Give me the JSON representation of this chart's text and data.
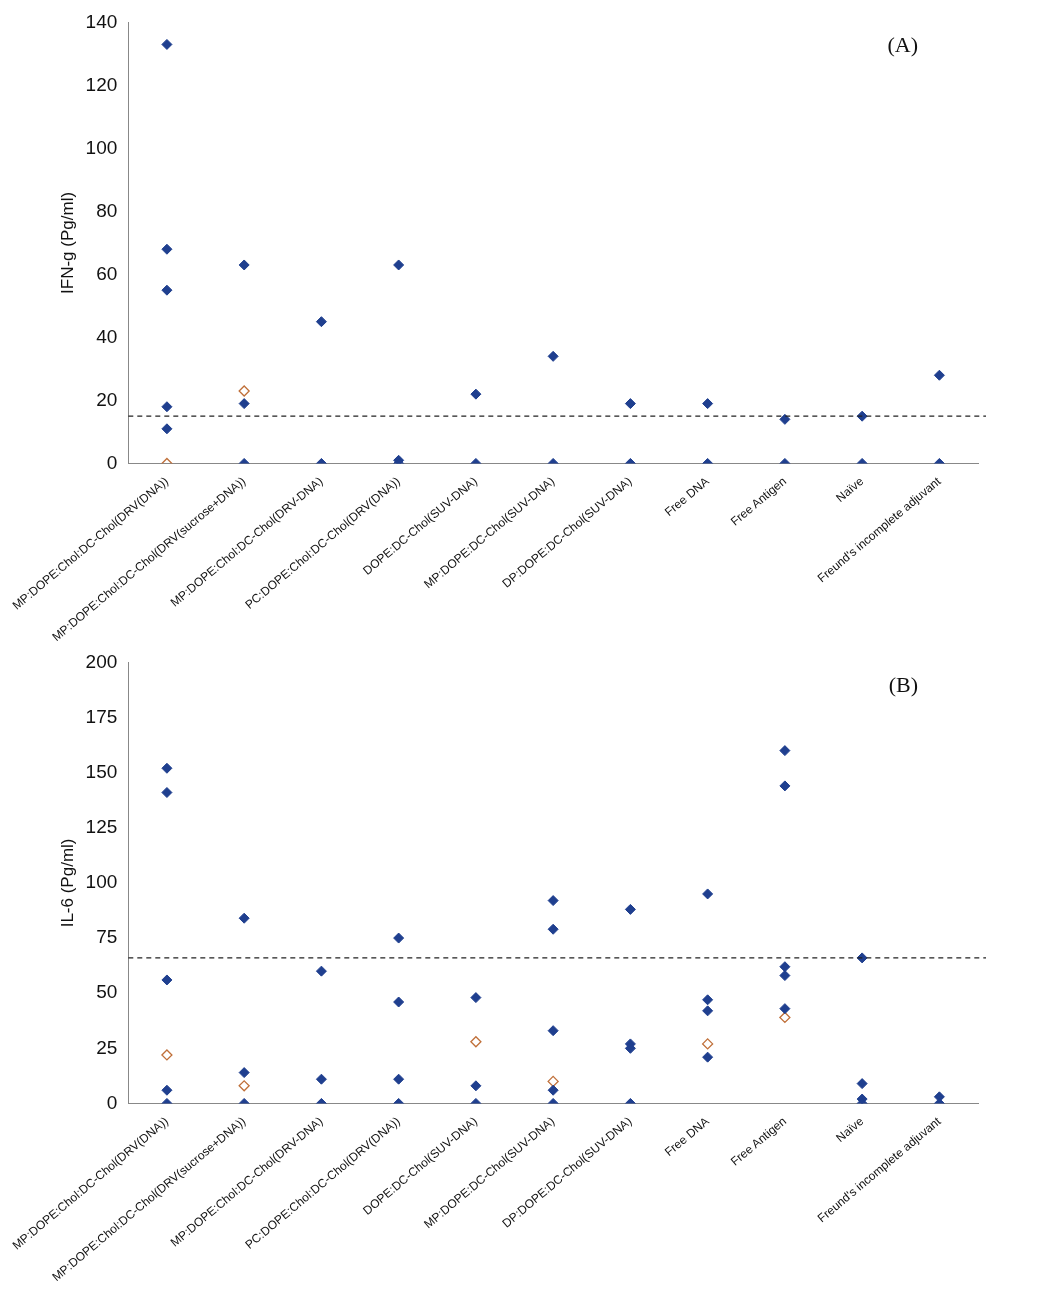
{
  "chart_data": [
    {
      "type": "scatter",
      "ylabel": "IFN-g (Pg/ml)",
      "annotations": [
        "(A)"
      ],
      "marker": "diamond",
      "legend": false,
      "grid": false,
      "categories": [
        "MP:DOPE:Chol:DC-Chol(DRV(DNA))",
        "MP:DOPE:Chol:DC-Chol(DRV(sucrose+DNA))",
        "MP:DOPE:Chol:DC-Chol(DRV-DNA)",
        "PC:DOPE:Chol:DC-Chol(DRV(DNA))",
        "DOPE:DC-Chol(SUV-DNA)",
        "MP:DOPE:DC-Chol(SUV-DNA)",
        "DP:DOPE:DC-Chol(SUV-DNA)",
        "Free DNA",
        "Free Antigen",
        "Naïve",
        "Freund's incomplete adjuvant"
      ],
      "ylim": [
        0,
        140
      ],
      "yticks": [
        0,
        20,
        40,
        60,
        80,
        100,
        120,
        140
      ],
      "ref_lines": [
        {
          "axis": "y",
          "value": 15,
          "line_style": "dashed"
        }
      ],
      "series": [
        {
          "color": "#1f3f8f",
          "x": [
            "MP:DOPE:Chol:DC-Chol(DRV(DNA))",
            "MP:DOPE:Chol:DC-Chol(DRV(DNA))",
            "MP:DOPE:Chol:DC-Chol(DRV(DNA))",
            "MP:DOPE:Chol:DC-Chol(DRV(DNA))",
            "MP:DOPE:Chol:DC-Chol(DRV(DNA))",
            "MP:DOPE:Chol:DC-Chol(DRV(sucrose+DNA))",
            "MP:DOPE:Chol:DC-Chol(DRV(sucrose+DNA))",
            "MP:DOPE:Chol:DC-Chol(DRV(sucrose+DNA))",
            "MP:DOPE:Chol:DC-Chol(DRV-DNA)",
            "MP:DOPE:Chol:DC-Chol(DRV-DNA)",
            "PC:DOPE:Chol:DC-Chol(DRV(DNA))",
            "PC:DOPE:Chol:DC-Chol(DRV(DNA))",
            "PC:DOPE:Chol:DC-Chol(DRV(DNA))",
            "DOPE:DC-Chol(SUV-DNA)",
            "DOPE:DC-Chol(SUV-DNA)",
            "MP:DOPE:DC-Chol(SUV-DNA)",
            "MP:DOPE:DC-Chol(SUV-DNA)",
            "DP:DOPE:DC-Chol(SUV-DNA)",
            "DP:DOPE:DC-Chol(SUV-DNA)",
            "Free DNA",
            "Free DNA",
            "Free Antigen",
            "Free Antigen",
            "Naïve",
            "Naïve",
            "Freund's incomplete adjuvant",
            "Freund's incomplete adjuvant"
          ],
          "values": [
            133,
            68,
            55,
            18,
            11,
            63,
            19,
            0,
            45,
            0,
            63,
            1,
            0,
            22,
            0,
            34,
            0,
            19,
            0,
            19,
            0,
            14,
            0,
            15,
            0,
            28,
            0
          ]
        },
        {
          "color": "#c0703a",
          "x": [
            "MP:DOPE:Chol:DC-Chol(DRV(DNA))",
            "MP:DOPE:Chol:DC-Chol(DRV(sucrose+DNA))"
          ],
          "values": [
            0,
            23
          ]
        }
      ]
    },
    {
      "type": "scatter",
      "ylabel": "IL-6 (Pg/ml)",
      "annotations": [
        "(B)"
      ],
      "marker": "diamond",
      "legend": false,
      "grid": false,
      "categories": [
        "MP:DOPE:Chol:DC-Chol(DRV(DNA))",
        "MP:DOPE:Chol:DC-Chol(DRV(sucrose+DNA))",
        "MP:DOPE:Chol:DC-Chol(DRV-DNA)",
        "PC:DOPE:Chol:DC-Chol(DRV(DNA))",
        "DOPE:DC-Chol(SUV-DNA)",
        "MP:DOPE:DC-Chol(SUV-DNA)",
        "DP:DOPE:DC-Chol(SUV-DNA)",
        "Free DNA",
        "Free Antigen",
        "Naïve",
        "Freund's incomplete adjuvant"
      ],
      "ylim": [
        0,
        200
      ],
      "yticks": [
        0,
        25,
        50,
        75,
        100,
        125,
        150,
        175,
        200
      ],
      "ref_lines": [
        {
          "axis": "y",
          "value": 66,
          "line_style": "dashed"
        }
      ],
      "series": [
        {
          "color": "#1f3f8f",
          "x": [
            "MP:DOPE:Chol:DC-Chol(DRV(DNA))",
            "MP:DOPE:Chol:DC-Chol(DRV(DNA))",
            "MP:DOPE:Chol:DC-Chol(DRV(DNA))",
            "MP:DOPE:Chol:DC-Chol(DRV(DNA))",
            "MP:DOPE:Chol:DC-Chol(DRV(DNA))",
            "MP:DOPE:Chol:DC-Chol(DRV(sucrose+DNA))",
            "MP:DOPE:Chol:DC-Chol(DRV(sucrose+DNA))",
            "MP:DOPE:Chol:DC-Chol(DRV(sucrose+DNA))",
            "MP:DOPE:Chol:DC-Chol(DRV-DNA)",
            "MP:DOPE:Chol:DC-Chol(DRV-DNA)",
            "MP:DOPE:Chol:DC-Chol(DRV-DNA)",
            "PC:DOPE:Chol:DC-Chol(DRV(DNA))",
            "PC:DOPE:Chol:DC-Chol(DRV(DNA))",
            "PC:DOPE:Chol:DC-Chol(DRV(DNA))",
            "PC:DOPE:Chol:DC-Chol(DRV(DNA))",
            "DOPE:DC-Chol(SUV-DNA)",
            "DOPE:DC-Chol(SUV-DNA)",
            "DOPE:DC-Chol(SUV-DNA)",
            "MP:DOPE:DC-Chol(SUV-DNA)",
            "MP:DOPE:DC-Chol(SUV-DNA)",
            "MP:DOPE:DC-Chol(SUV-DNA)",
            "MP:DOPE:DC-Chol(SUV-DNA)",
            "MP:DOPE:DC-Chol(SUV-DNA)",
            "DP:DOPE:DC-Chol(SUV-DNA)",
            "DP:DOPE:DC-Chol(SUV-DNA)",
            "DP:DOPE:DC-Chol(SUV-DNA)",
            "DP:DOPE:DC-Chol(SUV-DNA)",
            "Free DNA",
            "Free DNA",
            "Free DNA",
            "Free DNA",
            "Free Antigen",
            "Free Antigen",
            "Free Antigen",
            "Free Antigen",
            "Free Antigen",
            "Naïve",
            "Naïve",
            "Naïve",
            "Naïve",
            "Freund's incomplete adjuvant",
            "Freund's incomplete adjuvant"
          ],
          "values": [
            152,
            141,
            56,
            6,
            0,
            84,
            14,
            0,
            60,
            11,
            0,
            75,
            46,
            11,
            0,
            48,
            8,
            0,
            92,
            79,
            33,
            6,
            0,
            88,
            27,
            25,
            0,
            95,
            47,
            42,
            21,
            160,
            144,
            62,
            58,
            43,
            66,
            9,
            2,
            0,
            3,
            0
          ]
        },
        {
          "color": "#c0703a",
          "x": [
            "MP:DOPE:Chol:DC-Chol(DRV(DNA))",
            "MP:DOPE:Chol:DC-Chol(DRV(sucrose+DNA))",
            "DOPE:DC-Chol(SUV-DNA)",
            "MP:DOPE:DC-Chol(SUV-DNA)",
            "Free DNA",
            "Free Antigen"
          ],
          "values": [
            22,
            8,
            28,
            10,
            27,
            39
          ]
        }
      ]
    }
  ]
}
